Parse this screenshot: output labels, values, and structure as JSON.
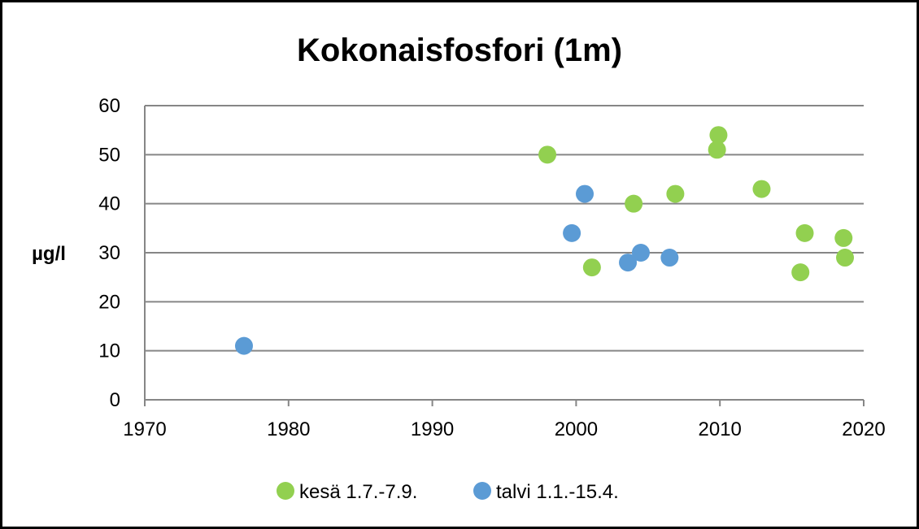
{
  "chart_data": {
    "type": "scatter",
    "title": "Kokonaisfosfori (1m)",
    "xlabel": "",
    "ylabel": "µg/l",
    "xlim": [
      1970,
      2020
    ],
    "ylim": [
      0,
      60
    ],
    "x_ticks": [
      1970,
      1980,
      1990,
      2000,
      2010,
      2020
    ],
    "y_ticks": [
      0,
      10,
      20,
      30,
      40,
      50,
      60
    ],
    "grid": "horizontal",
    "legend_position": "bottom",
    "series": [
      {
        "name": "kesä 1.7.-7.9.",
        "color": "#92d050",
        "points": [
          {
            "x": 1998.0,
            "y": 50
          },
          {
            "x": 2001.1,
            "y": 27
          },
          {
            "x": 2004.0,
            "y": 40
          },
          {
            "x": 2006.9,
            "y": 42
          },
          {
            "x": 2009.8,
            "y": 51
          },
          {
            "x": 2009.9,
            "y": 54
          },
          {
            "x": 2012.9,
            "y": 43
          },
          {
            "x": 2015.6,
            "y": 26
          },
          {
            "x": 2015.9,
            "y": 34
          },
          {
            "x": 2018.6,
            "y": 33
          },
          {
            "x": 2018.7,
            "y": 29
          }
        ]
      },
      {
        "name": "talvi 1.1.-15.4.",
        "color": "#5b9bd5",
        "points": [
          {
            "x": 1976.9,
            "y": 11
          },
          {
            "x": 1999.7,
            "y": 34
          },
          {
            "x": 2000.6,
            "y": 42
          },
          {
            "x": 2003.6,
            "y": 28
          },
          {
            "x": 2004.5,
            "y": 30
          },
          {
            "x": 2006.5,
            "y": 29
          }
        ]
      }
    ]
  }
}
